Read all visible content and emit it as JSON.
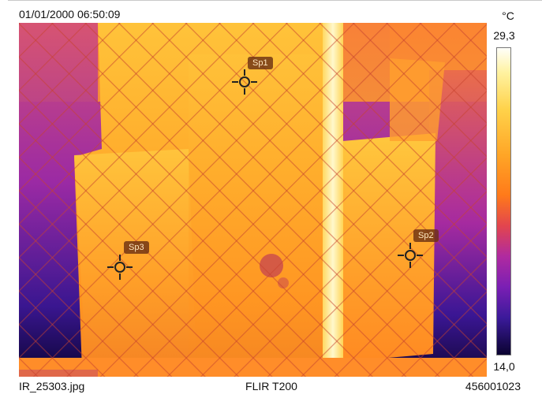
{
  "header": {
    "timestamp": "01/01/2000 06:50:09",
    "unit": "°C"
  },
  "scale": {
    "max": "29,3",
    "min": "14,0",
    "palette": "iron",
    "colors": [
      "#fffffa",
      "#ffd24a",
      "#ff7a1a",
      "#b02aa0",
      "#3b1a9a",
      "#0a0330"
    ]
  },
  "footer": {
    "filename": "IR_25303.jpg",
    "camera": "FLIR T200",
    "serial": "456001023"
  },
  "spots": [
    {
      "label": "Sp1"
    },
    {
      "label": "Sp2"
    },
    {
      "label": "Sp3"
    }
  ]
}
